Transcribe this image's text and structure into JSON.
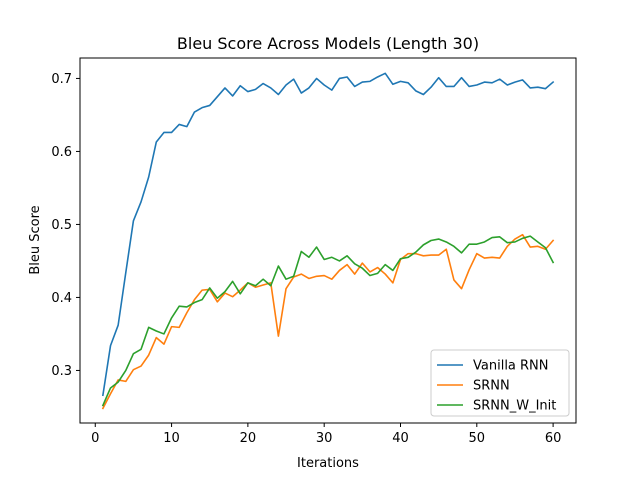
{
  "chart_data": {
    "type": "line",
    "title": "Bleu Score Across Models (Length 30)",
    "xlabel": "Iterations",
    "ylabel": "Bleu Score",
    "xlim": [
      -2.0,
      63.0
    ],
    "ylim": [
      0.228,
      0.728
    ],
    "xticks": [
      0,
      10,
      20,
      30,
      40,
      50,
      60
    ],
    "yticks": [
      0.3,
      0.4,
      0.5,
      0.6,
      0.7
    ],
    "ytick_labels": [
      "0.3",
      "0.4",
      "0.5",
      "0.6",
      "0.7"
    ],
    "grid": false,
    "legend": "lower-right",
    "x": [
      1,
      2,
      3,
      4,
      5,
      6,
      7,
      8,
      9,
      10,
      11,
      12,
      13,
      14,
      15,
      16,
      17,
      18,
      19,
      20,
      21,
      22,
      23,
      24,
      25,
      26,
      27,
      28,
      29,
      30,
      31,
      32,
      33,
      34,
      35,
      36,
      37,
      38,
      39,
      40,
      41,
      42,
      43,
      44,
      45,
      46,
      47,
      48,
      49,
      50,
      51,
      52,
      53,
      54,
      55,
      56,
      57,
      58,
      59,
      60
    ],
    "series": [
      {
        "name": "Vanilla RNN",
        "color": "#1f77b4",
        "values": [
          0.266,
          0.334,
          0.362,
          0.434,
          0.505,
          0.531,
          0.565,
          0.613,
          0.626,
          0.626,
          0.637,
          0.634,
          0.654,
          0.66,
          0.663,
          0.675,
          0.687,
          0.676,
          0.69,
          0.682,
          0.685,
          0.693,
          0.687,
          0.678,
          0.691,
          0.699,
          0.68,
          0.687,
          0.7,
          0.691,
          0.684,
          0.7,
          0.702,
          0.689,
          0.695,
          0.696,
          0.702,
          0.707,
          0.692,
          0.696,
          0.694,
          0.683,
          0.678,
          0.688,
          0.701,
          0.689,
          0.689,
          0.701,
          0.689,
          0.691,
          0.695,
          0.694,
          0.699,
          0.691,
          0.695,
          0.698,
          0.687,
          0.688,
          0.686,
          0.695
        ]
      },
      {
        "name": "SRNN",
        "color": "#ff7f0e",
        "values": [
          0.248,
          0.268,
          0.287,
          0.285,
          0.301,
          0.306,
          0.321,
          0.345,
          0.336,
          0.36,
          0.359,
          0.379,
          0.397,
          0.41,
          0.411,
          0.394,
          0.406,
          0.401,
          0.41,
          0.42,
          0.414,
          0.417,
          0.42,
          0.347,
          0.412,
          0.428,
          0.432,
          0.426,
          0.429,
          0.43,
          0.425,
          0.437,
          0.445,
          0.432,
          0.447,
          0.435,
          0.441,
          0.432,
          0.42,
          0.452,
          0.46,
          0.46,
          0.457,
          0.458,
          0.458,
          0.466,
          0.424,
          0.412,
          0.438,
          0.46,
          0.454,
          0.455,
          0.454,
          0.47,
          0.48,
          0.486,
          0.469,
          0.47,
          0.466,
          0.478
        ]
      },
      {
        "name": "SRNN_W_Init",
        "color": "#2ca02c",
        "values": [
          0.252,
          0.276,
          0.284,
          0.3,
          0.323,
          0.329,
          0.359,
          0.354,
          0.35,
          0.372,
          0.388,
          0.387,
          0.393,
          0.397,
          0.413,
          0.399,
          0.408,
          0.422,
          0.405,
          0.42,
          0.416,
          0.425,
          0.416,
          0.443,
          0.425,
          0.429,
          0.463,
          0.455,
          0.469,
          0.452,
          0.455,
          0.45,
          0.457,
          0.446,
          0.44,
          0.43,
          0.433,
          0.445,
          0.437,
          0.453,
          0.455,
          0.462,
          0.472,
          0.478,
          0.48,
          0.476,
          0.47,
          0.461,
          0.473,
          0.473,
          0.476,
          0.482,
          0.483,
          0.475,
          0.476,
          0.481,
          0.484,
          0.476,
          0.468,
          0.448
        ]
      }
    ]
  }
}
